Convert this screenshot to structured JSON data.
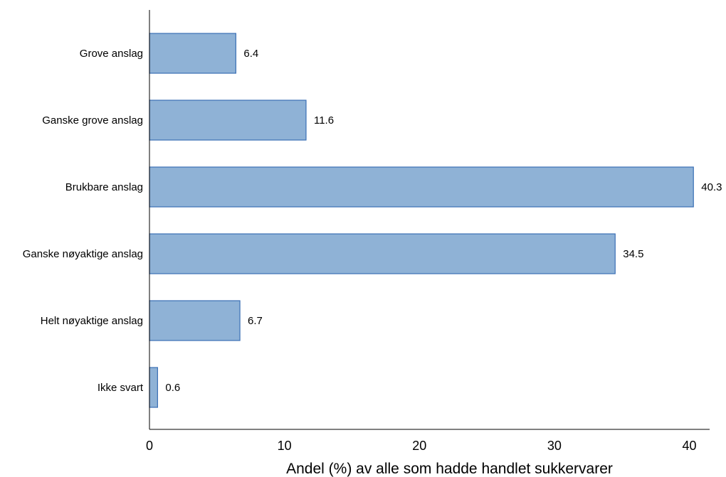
{
  "chart_data": {
    "type": "bar",
    "orientation": "horizontal",
    "categories": [
      "Grove anslag",
      "Ganske grove anslag",
      "Brukbare anslag",
      "Ganske nøyaktige anslag",
      "Helt nøyaktige anslag",
      "Ikke svart"
    ],
    "values": [
      6.4,
      11.6,
      40.3,
      34.5,
      6.7,
      0.6
    ],
    "value_labels": [
      "6.4",
      "11.6",
      "40.3",
      "34.5",
      "6.7",
      "0.6"
    ],
    "xlabel": "Andel (%) av alle som hadde handlet sukkervarer",
    "ylabel": "",
    "xlim": [
      0,
      41.5
    ],
    "xticks": [
      0,
      10,
      20,
      30,
      40
    ],
    "xtick_labels": [
      "0",
      "10",
      "20",
      "30",
      "40"
    ],
    "grid": false,
    "bar_color": "#8fb2d6",
    "bar_edge_color": "#3a6fb5"
  }
}
